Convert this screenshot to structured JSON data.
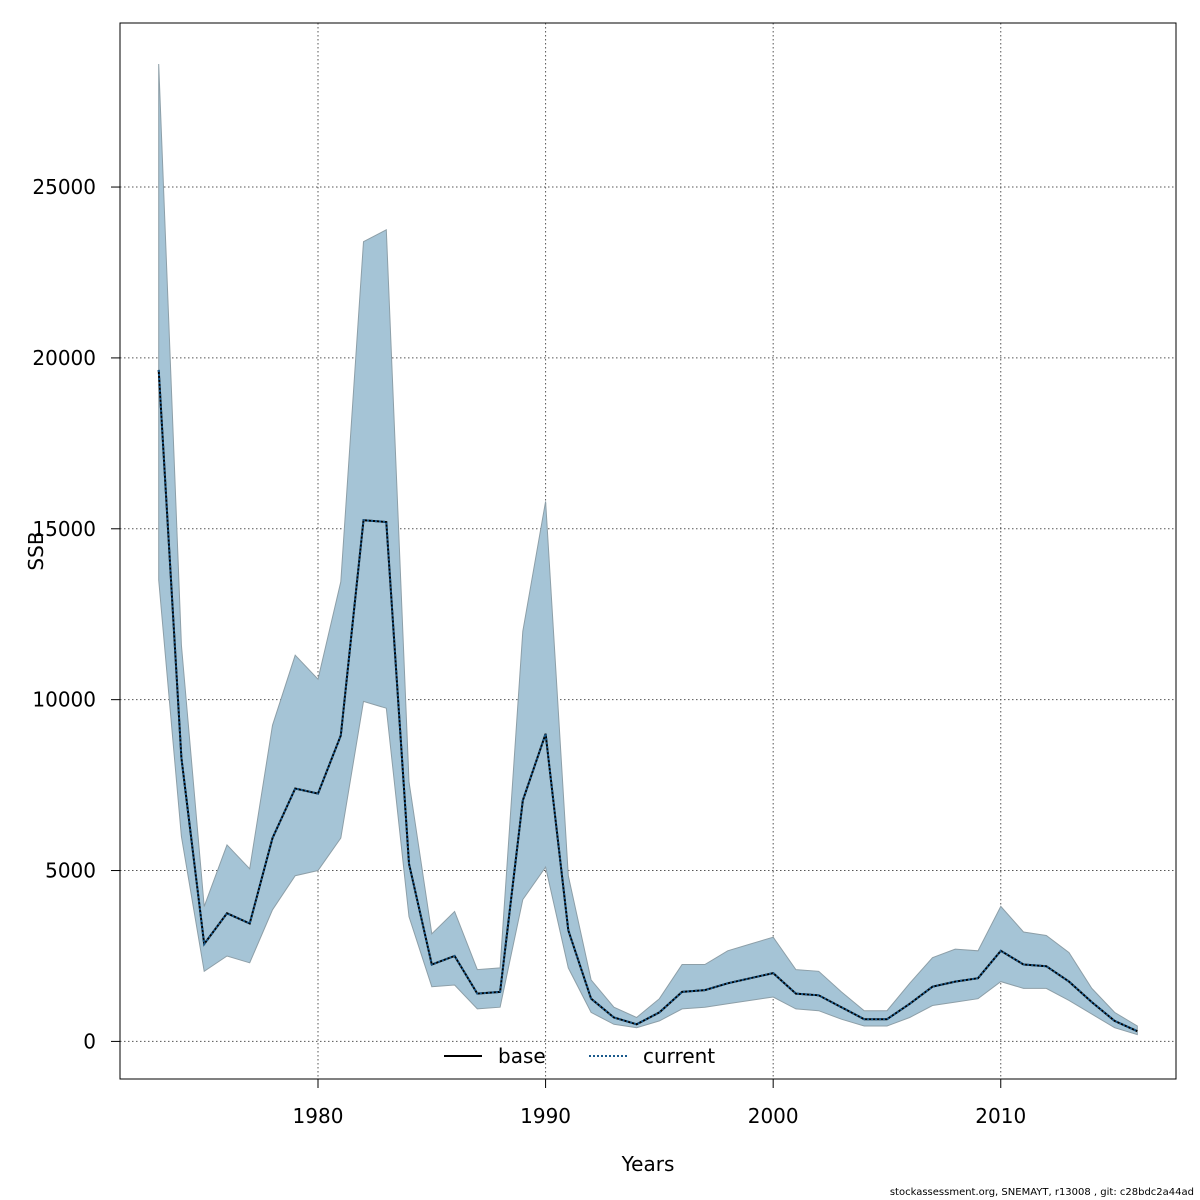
{
  "chart_data": {
    "type": "area",
    "xlabel": "Years",
    "ylabel": "SSB",
    "xlim": [
      1971.3,
      2017.7
    ],
    "ylim": [
      -1100,
      29800
    ],
    "x_ticks": [
      1980,
      1990,
      2000,
      2010
    ],
    "y_ticks": [
      0,
      5000,
      10000,
      15000,
      20000,
      25000
    ],
    "grid": true,
    "legend_placement": "bottom",
    "x": [
      1973,
      1974,
      1975,
      1976,
      1977,
      1978,
      1979,
      1980,
      1981,
      1982,
      1983,
      1984,
      1985,
      1986,
      1987,
      1988,
      1989,
      1990,
      1991,
      1992,
      1993,
      1994,
      1995,
      1996,
      1997,
      1998,
      1999,
      2000,
      2001,
      2002,
      2003,
      2004,
      2005,
      2006,
      2007,
      2008,
      2009,
      2010,
      2011,
      2012,
      2013,
      2014,
      2015,
      2016
    ],
    "series": [
      {
        "name": "base",
        "values": [
          19650,
          8300,
          2850,
          3750,
          3450,
          5950,
          7400,
          7250,
          8950,
          15250,
          15200,
          5200,
          2250,
          2500,
          1400,
          1450,
          7050,
          9000,
          3250,
          1250,
          700,
          500,
          850,
          1450,
          1500,
          1700,
          1850,
          2000,
          1400,
          1350,
          1000,
          650,
          650,
          1100,
          1600,
          1750,
          1850,
          2650,
          2250,
          2200,
          1750,
          1150,
          600,
          300
        ],
        "upper": [
          28600,
          11600,
          3950,
          5750,
          5050,
          9250,
          11300,
          10600,
          13450,
          23400,
          23750,
          7600,
          3150,
          3800,
          2100,
          2150,
          12000,
          15800,
          4850,
          1800,
          1000,
          700,
          1250,
          2250,
          2250,
          2650,
          2850,
          3050,
          2100,
          2050,
          1450,
          900,
          900,
          1700,
          2450,
          2700,
          2650,
          3950,
          3200,
          3100,
          2600,
          1550,
          850,
          450
        ],
        "lower": [
          13500,
          6000,
          2050,
          2500,
          2300,
          3850,
          4850,
          5000,
          5950,
          9950,
          9750,
          3650,
          1600,
          1650,
          950,
          1000,
          4150,
          5100,
          2150,
          850,
          500,
          400,
          600,
          950,
          1000,
          1100,
          1200,
          1300,
          950,
          900,
          650,
          450,
          450,
          700,
          1050,
          1150,
          1250,
          1750,
          1550,
          1550,
          1200,
          800,
          400,
          200
        ]
      },
      {
        "name": "current",
        "values": [
          19650,
          8300,
          2850,
          3750,
          3450,
          5950,
          7400,
          7250,
          8950,
          15250,
          15200,
          5200,
          2250,
          2500,
          1400,
          1450,
          7050,
          9000,
          3250,
          1250,
          700,
          500,
          850,
          1450,
          1500,
          1700,
          1850,
          2000,
          1400,
          1350,
          1000,
          650,
          650,
          1100,
          1600,
          1750,
          1850,
          2650,
          2250,
          2200,
          1750,
          1150,
          600,
          300
        ]
      }
    ],
    "colors": {
      "band_fill": "#a5c4d6",
      "band_stroke": "#8d9fa8",
      "base_line": "#000000",
      "current_line": "#1a5a8c",
      "grid": "#555555"
    }
  },
  "footer": {
    "text": "stockassessment.org, SNEMAYT, r13008 , git: c28bdc2a44ad"
  }
}
